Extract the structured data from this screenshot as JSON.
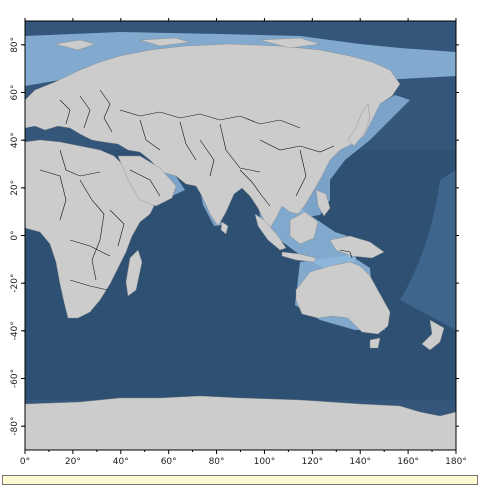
{
  "map": {
    "projection": "equirectangular",
    "lon_range": [
      0,
      180
    ],
    "lat_range": [
      -90,
      90
    ],
    "colors": {
      "land": "#cccccc",
      "ocean_deep": "#2e4f70",
      "ocean_mid": "#3e6690",
      "shelf": "#8fb8dd",
      "border": "#111111",
      "frame": "#000000"
    },
    "x_ticks": [
      {
        "value": 0,
        "label": "0°"
      },
      {
        "value": 20,
        "label": "20°"
      },
      {
        "value": 40,
        "label": "40°"
      },
      {
        "value": 60,
        "label": "60°"
      },
      {
        "value": 80,
        "label": "80°"
      },
      {
        "value": 100,
        "label": "100°"
      },
      {
        "value": 120,
        "label": "120°"
      },
      {
        "value": 140,
        "label": "140°"
      },
      {
        "value": 160,
        "label": "160°"
      },
      {
        "value": 180,
        "label": "180°"
      }
    ],
    "y_ticks": [
      {
        "value": 80,
        "label": "80°"
      },
      {
        "value": 60,
        "label": "60°"
      },
      {
        "value": 40,
        "label": "40°"
      },
      {
        "value": 20,
        "label": "20°"
      },
      {
        "value": 0,
        "label": "0°"
      },
      {
        "value": -20,
        "label": "-20°"
      },
      {
        "value": -40,
        "label": "-40°"
      },
      {
        "value": -60,
        "label": "-60°"
      },
      {
        "value": -80,
        "label": "-80°"
      }
    ]
  },
  "status_bar": {
    "text": ""
  }
}
